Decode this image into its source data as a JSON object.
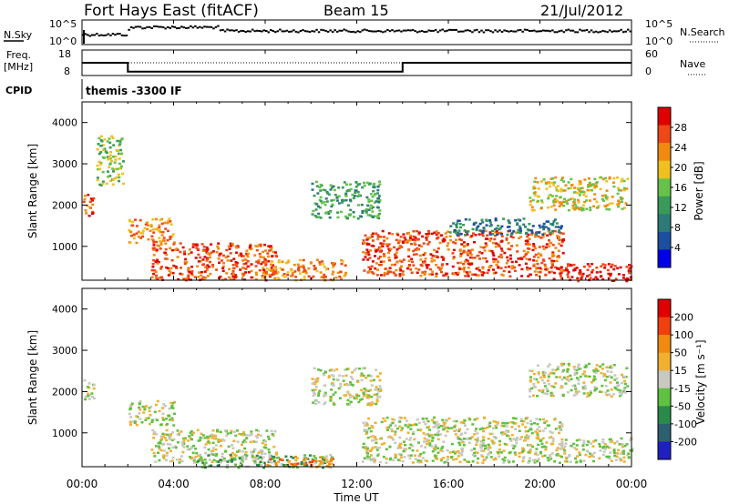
{
  "header": {
    "station": "Fort Hays East (fitACF)",
    "beam": "Beam 15",
    "date": "21/Jul/2012"
  },
  "noise_panel": {
    "left_label": "N.Sky",
    "right_label": "N.Search",
    "left_ticks": [
      "10^5",
      "10^0"
    ],
    "right_ticks": [
      "10^5",
      "10^0"
    ]
  },
  "freq_panel": {
    "left_label_1": "Freq.",
    "left_label_2": "[MHz]",
    "right_label": "Nave",
    "left_ticks": [
      "18",
      "8"
    ],
    "right_ticks": [
      "60",
      "0"
    ]
  },
  "cpid": {
    "label": "CPID",
    "value": "themis -3300 IF"
  },
  "power_panel": {
    "ylabel": "Slant Range [km]",
    "yticks": [
      "4000",
      "3000",
      "2000",
      "1000"
    ],
    "colorbar_label": "Power [dB]",
    "colorbar_ticks": [
      "28",
      "24",
      "20",
      "16",
      "12",
      "8",
      "4"
    ],
    "colors": [
      "#0000e8",
      "#1c4fa0",
      "#2e7a78",
      "#3a9a5a",
      "#66c24a",
      "#f0c020",
      "#f08a10",
      "#ee4818",
      "#e00000"
    ]
  },
  "velocity_panel": {
    "ylabel": "Slant Range [km]",
    "yticks": [
      "4000",
      "3000",
      "2000",
      "1000"
    ],
    "colorbar_label": "Velocity [m s⁻¹]",
    "colorbar_ticks": [
      "200",
      "100",
      "50",
      "15",
      "-15",
      "-50",
      "-100",
      "-200"
    ],
    "colors": [
      "#2020c0",
      "#2c6070",
      "#2a8a4a",
      "#60c040",
      "#c8c8c0",
      "#f0b030",
      "#f08a10",
      "#f04010",
      "#e00000"
    ]
  },
  "xaxis": {
    "label": "Time UT",
    "ticks": [
      "00:00",
      "04:00",
      "08:00",
      "12:00",
      "16:00",
      "20:00",
      "00:00"
    ]
  },
  "chart_data": [
    {
      "type": "line",
      "title": "Fort Hays East (fitACF) Beam 15 21/Jul/2012",
      "xlabel": "Time UT",
      "ylabel": "Freq. [MHz]",
      "series": [
        {
          "name": "Freq.",
          "x": [
            0,
            2,
            2,
            14,
            14,
            24
          ],
          "values": [
            13,
            13,
            9.5,
            9.5,
            13,
            13
          ]
        }
      ],
      "ylim": [
        8,
        18
      ],
      "xlim": [
        0,
        24
      ]
    },
    {
      "type": "heatmap",
      "ylabel": "Slant Range [km]",
      "xlabel": "Time UT",
      "colorbar": "Power [dB]",
      "colorbar_ticks": [
        28,
        24,
        20,
        16,
        12,
        8,
        4
      ],
      "xlim": [
        0,
        24
      ],
      "ylim": [
        180,
        4500
      ],
      "regions": [
        {
          "t": [
            0.0,
            0.5
          ],
          "r": [
            1700,
            2300
          ],
          "level": 7
        },
        {
          "t": [
            0.6,
            1.8
          ],
          "r": [
            2500,
            3700
          ],
          "level": 4
        },
        {
          "t": [
            2.0,
            4.0
          ],
          "r": [
            1100,
            1700
          ],
          "level": 6
        },
        {
          "t": [
            3.0,
            8.5
          ],
          "r": [
            200,
            1100
          ],
          "level": 7
        },
        {
          "t": [
            7.5,
            11.5
          ],
          "r": [
            200,
            700
          ],
          "level": 6
        },
        {
          "t": [
            10.0,
            13.0
          ],
          "r": [
            1700,
            2600
          ],
          "level": 3
        },
        {
          "t": [
            12.2,
            21.0
          ],
          "r": [
            300,
            1400
          ],
          "level": 7
        },
        {
          "t": [
            16.0,
            21.0
          ],
          "r": [
            1300,
            1700
          ],
          "level": 2
        },
        {
          "t": [
            19.5,
            23.8
          ],
          "r": [
            1900,
            2700
          ],
          "level": 5
        },
        {
          "t": [
            20.5,
            24.0
          ],
          "r": [
            180,
            600
          ],
          "level": 8
        }
      ]
    },
    {
      "type": "heatmap",
      "ylabel": "Slant Range [km]",
      "xlabel": "Time UT",
      "colorbar": "Velocity [m s⁻¹]",
      "colorbar_ticks": [
        200,
        100,
        50,
        15,
        -15,
        -50,
        -100,
        -200
      ],
      "xlim": [
        0,
        24
      ],
      "ylim": [
        180,
        4500
      ],
      "regions": [
        {
          "t": [
            0.0,
            0.5
          ],
          "r": [
            1800,
            2300
          ],
          "level": 4
        },
        {
          "t": [
            2.0,
            4.0
          ],
          "r": [
            1200,
            1800
          ],
          "level": 4
        },
        {
          "t": [
            3.0,
            8.5
          ],
          "r": [
            300,
            1100
          ],
          "level": 4
        },
        {
          "t": [
            5.0,
            11.0
          ],
          "r": [
            180,
            500
          ],
          "level": 3
        },
        {
          "t": [
            8.0,
            11.0
          ],
          "r": [
            180,
            450
          ],
          "level": 6
        },
        {
          "t": [
            10.0,
            13.0
          ],
          "r": [
            1700,
            2600
          ],
          "level": 4
        },
        {
          "t": [
            12.2,
            21.0
          ],
          "r": [
            300,
            1400
          ],
          "level": 4
        },
        {
          "t": [
            19.5,
            23.8
          ],
          "r": [
            1900,
            2700
          ],
          "level": 4
        },
        {
          "t": [
            21.0,
            24.0
          ],
          "r": [
            300,
            900
          ],
          "level": 4
        }
      ]
    }
  ]
}
